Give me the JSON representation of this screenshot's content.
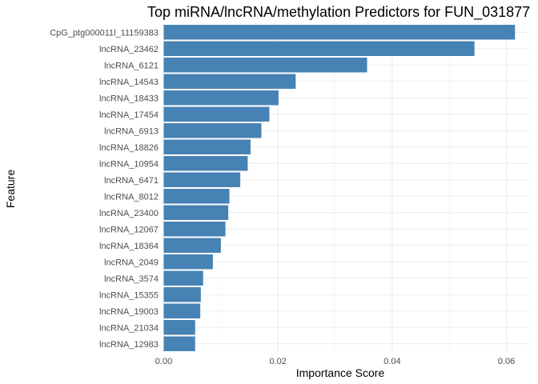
{
  "chart_data": {
    "type": "bar",
    "orientation": "horizontal",
    "title": "Top miRNA/lncRNA/methylation Predictors for FUN_031877",
    "xlabel": "Importance Score",
    "ylabel": "Feature",
    "xlim": [
      0,
      0.0635
    ],
    "x_ticks": [
      0,
      0.02,
      0.04,
      0.06
    ],
    "x_tick_labels": [
      "0.00",
      "0.02",
      "0.04",
      "0.06"
    ],
    "grid": true,
    "legend": "none",
    "bar_color": "#4682b4",
    "categories": [
      "CpG_ptg000011l_11159383",
      "lncRNA_23462",
      "lncRNA_6121",
      "lncRNA_14543",
      "lncRNA_18433",
      "lncRNA_17454",
      "lncRNA_6913",
      "lncRNA_18826",
      "lncRNA_10954",
      "lncRNA_6471",
      "lncRNA_8012",
      "lncRNA_23400",
      "lncRNA_12067",
      "lncRNA_18364",
      "lncRNA_2049",
      "lncRNA_3574",
      "lncRNA_15355",
      "lncRNA_19003",
      "lncRNA_21034",
      "lncRNA_12983"
    ],
    "values": [
      0.0615,
      0.0544,
      0.0356,
      0.0231,
      0.0201,
      0.0185,
      0.0171,
      0.0152,
      0.0147,
      0.0134,
      0.0115,
      0.0113,
      0.0108,
      0.01,
      0.0086,
      0.0069,
      0.0065,
      0.0064,
      0.0055,
      0.0055
    ]
  }
}
